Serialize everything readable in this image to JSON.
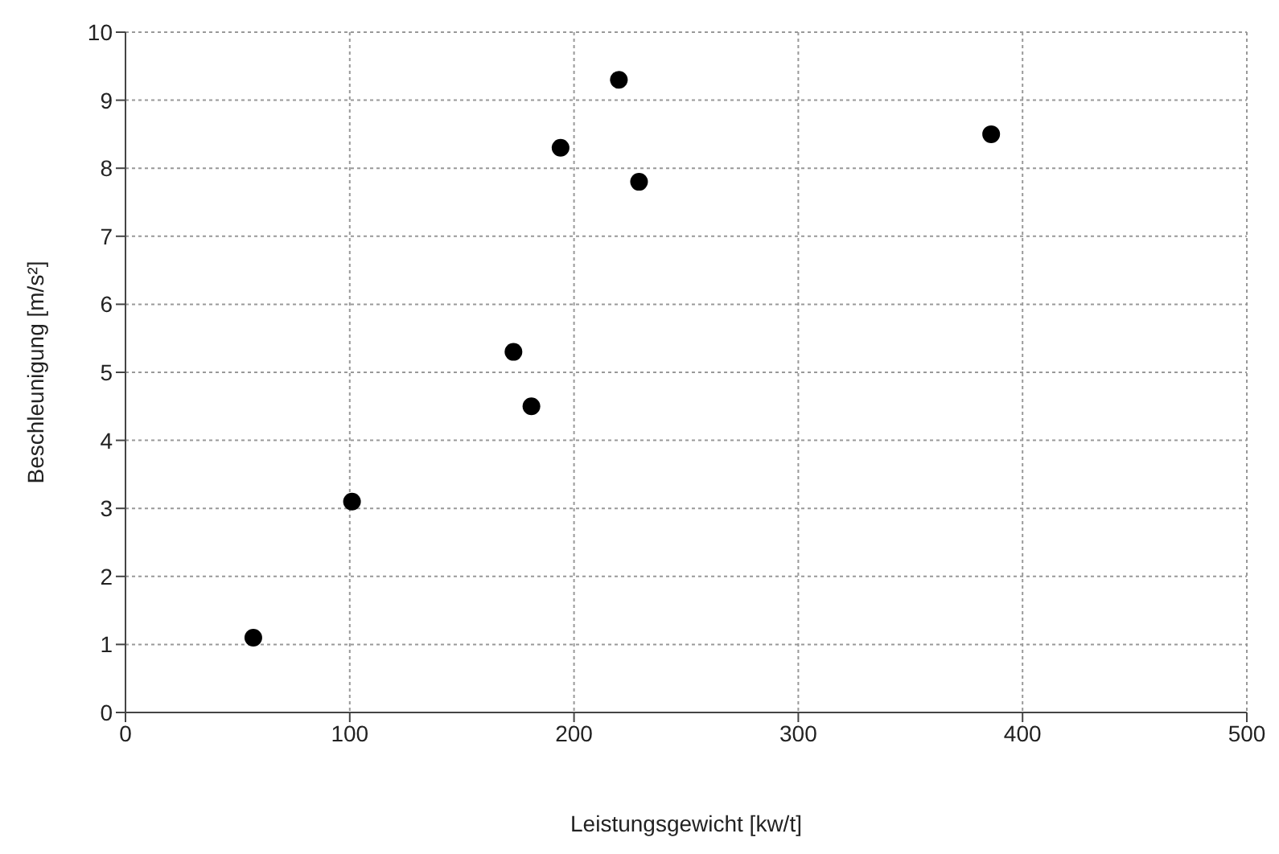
{
  "chart_data": {
    "type": "scatter",
    "xlabel": "Leistungsgewicht [kw/t]",
    "ylabel": "Beschleunigung [m/s²]",
    "x": [
      57,
      101,
      173,
      181,
      194,
      220,
      229,
      386
    ],
    "series": [
      {
        "color": "#000000",
        "values": [
          1.1,
          3.1,
          5.3,
          4.5,
          8.3,
          9.3,
          7.8,
          8.5
        ]
      }
    ],
    "xlim": [
      0,
      500
    ],
    "xticks": [
      0,
      100,
      200,
      300,
      400,
      500
    ],
    "ylim": [
      0,
      10
    ],
    "yticks": [
      0,
      1,
      2,
      3,
      4,
      5,
      6,
      7,
      8,
      9,
      10
    ],
    "grid": true,
    "marker": "circle"
  }
}
